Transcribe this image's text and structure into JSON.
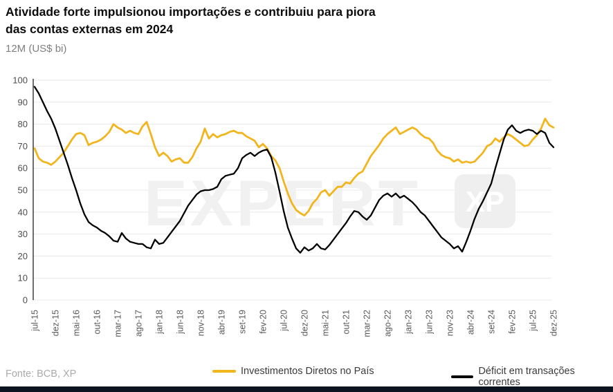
{
  "header": {
    "title_line1": "Atividade forte impulsionou importações e contribuiu para piora",
    "title_line2": "das contas externas em 2024",
    "subtitle": "12M (US$ bi)"
  },
  "footer": {
    "source": "Fonte: BCB, XP"
  },
  "watermark": {
    "text": "EXPERT",
    "badge": "XP"
  },
  "legend": [
    {
      "label": "Investimentos Diretos no País",
      "color": "#F2B51D"
    },
    {
      "label": "Déficit em transações correntes",
      "color": "#000000"
    }
  ],
  "chart_data": {
    "type": "line",
    "title": "Atividade forte impulsionou importações e contribuiu para piora das contas externas em 2024",
    "ylabel": "12M (US$ bi)",
    "ylim": [
      0,
      100
    ],
    "ytick_step": 10,
    "ytick_labels": [
      "0",
      "10",
      "20",
      "30",
      "40",
      "50",
      "60",
      "70",
      "80",
      "90",
      "100"
    ],
    "grid": "horizontal",
    "legend_position": "bottom",
    "x_frequency": "monthly",
    "x_start": "jul-15",
    "x_end": "dez-25",
    "x_tick_labels": [
      "jul-15",
      "dez-15",
      "mai-16",
      "out-16",
      "mar-17",
      "ago-17",
      "jan-18",
      "jun-18",
      "nov-18",
      "abr-19",
      "set-19",
      "fev-20",
      "jul-20",
      "dez-20",
      "mai-21",
      "out-21",
      "mar-22",
      "ago-22",
      "jan-23",
      "jun-23",
      "nov-23",
      "abr-24",
      "set-24",
      "fev-25",
      "jul-25",
      "dez-25"
    ],
    "x_tick_every_n_months": 5,
    "series": [
      {
        "name": "Investimentos Diretos no País",
        "color": "#F2B51D",
        "values": [
          69,
          64.5,
          63,
          62.5,
          61.5,
          63,
          65,
          67,
          70,
          73,
          75.5,
          76,
          75,
          70.5,
          71.5,
          72,
          73,
          74.5,
          76.5,
          80,
          78.5,
          77.5,
          76,
          77,
          76,
          75.5,
          79,
          81,
          75.5,
          69.5,
          65.5,
          67,
          65.5,
          63,
          64,
          64.5,
          62.5,
          62.5,
          65,
          69,
          72,
          78,
          73.5,
          75.5,
          74,
          75,
          75.5,
          76.5,
          77,
          76,
          76,
          74.5,
          73.5,
          72.5,
          69.5,
          71,
          69,
          65.5,
          63.5,
          60,
          54,
          48.5,
          44,
          41,
          39.5,
          38.5,
          40.5,
          44,
          46,
          49,
          50,
          47.5,
          49.5,
          51.5,
          51.5,
          53.5,
          53,
          55.5,
          57.5,
          58.5,
          62,
          65.5,
          68,
          70.5,
          73.5,
          75.5,
          77,
          78.5,
          75.5,
          76.5,
          77.5,
          78.5,
          77.5,
          75.5,
          74,
          73.5,
          71.5,
          68,
          66,
          65,
          64.5,
          63,
          64,
          62.5,
          63,
          62.5,
          63,
          65,
          67,
          70,
          71,
          73.5,
          72,
          74,
          75.5,
          74.5,
          73,
          71.5,
          70,
          70.5,
          73,
          75,
          78,
          82.5,
          79.5,
          78.5
        ]
      },
      {
        "name": "Déficit em transações correntes",
        "color": "#000000",
        "values": [
          97,
          94,
          90,
          86,
          82.5,
          78,
          72.5,
          67,
          61.5,
          55.5,
          50,
          44,
          39,
          35.5,
          34,
          33,
          31.5,
          30.5,
          29,
          27,
          26.5,
          30.5,
          28,
          26.5,
          26,
          25.5,
          25.5,
          24,
          23.5,
          27.5,
          25.5,
          26,
          28.5,
          31,
          33.5,
          36,
          39.5,
          43,
          45.5,
          48,
          49.5,
          50,
          50,
          50.5,
          51.5,
          55,
          56.5,
          57,
          57.5,
          60,
          64.5,
          66,
          67,
          65.5,
          67,
          68,
          68.5,
          65,
          58,
          49.5,
          40.5,
          33,
          28,
          23.5,
          21.5,
          24,
          22.5,
          23.5,
          25.5,
          23.5,
          23,
          25,
          27.5,
          30,
          32.5,
          35,
          38,
          40.5,
          40,
          38,
          36.5,
          38.5,
          42,
          45.5,
          47.5,
          48.5,
          47,
          48.5,
          46.5,
          47.5,
          46,
          44.5,
          42.5,
          40,
          38.5,
          36,
          33.5,
          31,
          28.5,
          27,
          25.5,
          23.5,
          24.5,
          22,
          26.5,
          31.5,
          37,
          41.5,
          45,
          49,
          53,
          60,
          66.5,
          73,
          77.5,
          79.5,
          77,
          76,
          77,
          77.5,
          77,
          75.5,
          77,
          76,
          71.5,
          69.5
        ]
      }
    ]
  }
}
